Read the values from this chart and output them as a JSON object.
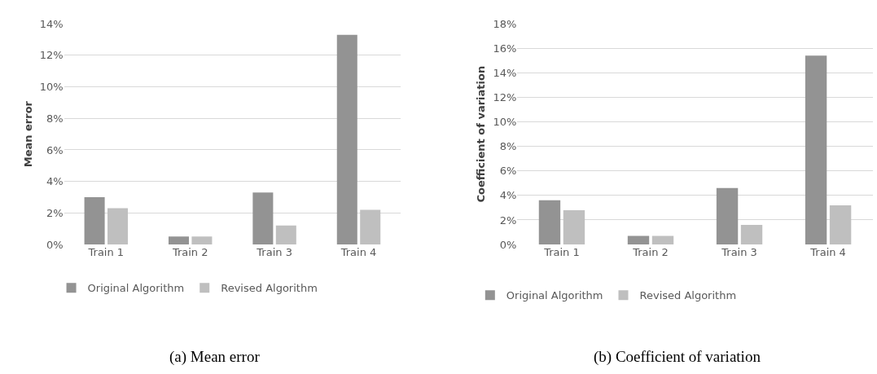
{
  "chart_data": [
    {
      "type": "bar",
      "title": "(a) Mean error",
      "ylabel": "Mean error",
      "categories": [
        "Train 1",
        "Train 2",
        "Train 3",
        "Train 4"
      ],
      "series": [
        {
          "name": "Original Algorithm",
          "color": "#939393",
          "values": [
            3.0,
            0.5,
            3.3,
            13.3
          ]
        },
        {
          "name": "Revised Algorithm",
          "color": "#bfbfbf",
          "values": [
            2.3,
            0.5,
            1.2,
            2.2
          ]
        }
      ],
      "ylim": [
        0,
        14
      ],
      "yticks": [
        {
          "value": 0,
          "label": "0%"
        },
        {
          "value": 2,
          "label": "2%"
        },
        {
          "value": 4,
          "label": "4%"
        },
        {
          "value": 6,
          "label": "6%"
        },
        {
          "value": 8,
          "label": "8%"
        },
        {
          "value": 10,
          "label": "10%"
        },
        {
          "value": 12,
          "label": "12%"
        },
        {
          "value": 14,
          "label": "14%"
        }
      ],
      "grid": "y",
      "legend": "bottom"
    },
    {
      "type": "bar",
      "title": "(b) Coefficient of variation",
      "ylabel": "Coefficient of variation",
      "categories": [
        "Train 1",
        "Train 2",
        "Train 3",
        "Train 4"
      ],
      "series": [
        {
          "name": "Original Algorithm",
          "color": "#939393",
          "values": [
            3.6,
            0.7,
            4.6,
            15.4
          ]
        },
        {
          "name": "Revised Algorithm",
          "color": "#bfbfbf",
          "values": [
            2.8,
            0.7,
            1.6,
            3.2
          ]
        }
      ],
      "ylim": [
        0,
        18
      ],
      "yticks": [
        {
          "value": 0,
          "label": "0%"
        },
        {
          "value": 2,
          "label": "2%"
        },
        {
          "value": 4,
          "label": "4%"
        },
        {
          "value": 6,
          "label": "6%"
        },
        {
          "value": 8,
          "label": "8%"
        },
        {
          "value": 10,
          "label": "10%"
        },
        {
          "value": 12,
          "label": "12%"
        },
        {
          "value": 14,
          "label": "14%"
        },
        {
          "value": 16,
          "label": "16%"
        },
        {
          "value": 18,
          "label": "18%"
        }
      ],
      "grid": "y",
      "legend": "bottom"
    }
  ]
}
